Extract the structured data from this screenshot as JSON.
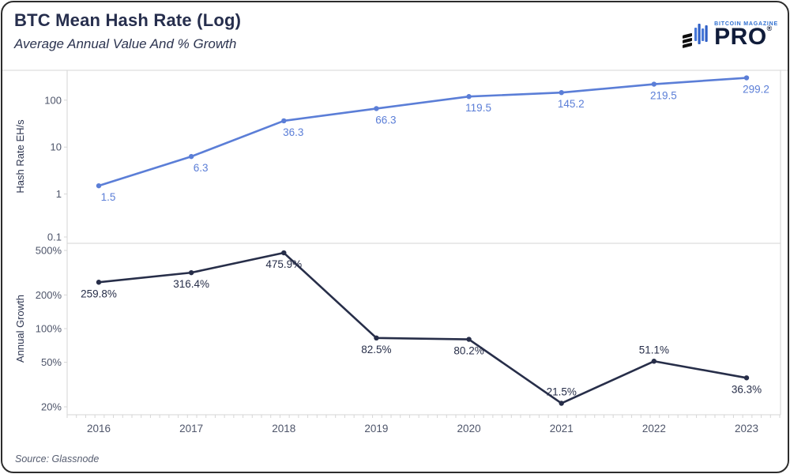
{
  "header": {
    "title": "BTC Mean Hash Rate (Log)",
    "subtitle": "Average Annual Value And % Growth"
  },
  "logo": {
    "magazine": "BITCOIN MAGAZINE",
    "pro": "PRO",
    "registered": "®"
  },
  "footer": {
    "source": "Source: Glassnode"
  },
  "theme": {
    "line_blue": "#5b7ed7",
    "line_navy": "#272e49",
    "grid": "#d6d6d6",
    "tick_text": "#4e556a",
    "axis_title_text": "#2d3550",
    "title_text": "#262e4d",
    "logo_blue": "#2f6fd0",
    "logo_navy": "#101c3a",
    "border": "#2d2d2d",
    "source_text": "#565d70"
  },
  "chart_data": [
    {
      "id": "hash-rate",
      "type": "line",
      "panel": "top",
      "scale": "log",
      "ylabel": "Hash Rate EH/s",
      "color": "#5b7ed7",
      "categories": [
        "2016",
        "2017",
        "2018",
        "2019",
        "2020",
        "2021",
        "2022",
        "2023"
      ],
      "values": [
        1.5,
        6.3,
        36.3,
        66.3,
        119.5,
        145.2,
        219.5,
        299.2
      ],
      "labels": [
        "1.5",
        "6.3",
        "36.3",
        "66.3",
        "119.5",
        "145.2",
        "219.5",
        "299.2"
      ],
      "label_positions": [
        "below",
        "below",
        "below",
        "below",
        "below",
        "below",
        "below",
        "below"
      ],
      "yticks": [
        {
          "value": 100,
          "label": "100"
        },
        {
          "value": 10,
          "label": "10"
        },
        {
          "value": 1,
          "label": "1"
        },
        {
          "value": 0.1,
          "label": "0.1"
        }
      ],
      "ylim": [
        0.1,
        440
      ],
      "grid": "off",
      "legend": "none"
    },
    {
      "id": "annual-growth",
      "type": "line",
      "panel": "bottom",
      "scale": "log",
      "ylabel": "Annual Growth",
      "color": "#272e49",
      "categories": [
        "2016",
        "2017",
        "2018",
        "2019",
        "2020",
        "2021",
        "2022",
        "2023"
      ],
      "values": [
        259.8,
        316.4,
        475.9,
        82.5,
        80.2,
        21.5,
        51.1,
        36.3
      ],
      "labels": [
        "259.8%",
        "316.4%",
        "475.9%",
        "82.5%",
        "80.2%",
        "21.5%",
        "51.1%",
        "36.3%"
      ],
      "label_positions": [
        "below",
        "below",
        "below",
        "below",
        "below",
        "above",
        "above",
        "below"
      ],
      "yticks": [
        {
          "value": 500,
          "label": "500%"
        },
        {
          "value": 200,
          "label": "200%"
        },
        {
          "value": 100,
          "label": "100%"
        },
        {
          "value": 50,
          "label": "50%"
        },
        {
          "value": 20,
          "label": "20%"
        }
      ],
      "ylim": [
        17,
        520
      ],
      "grid": "off",
      "legend": "none"
    }
  ]
}
